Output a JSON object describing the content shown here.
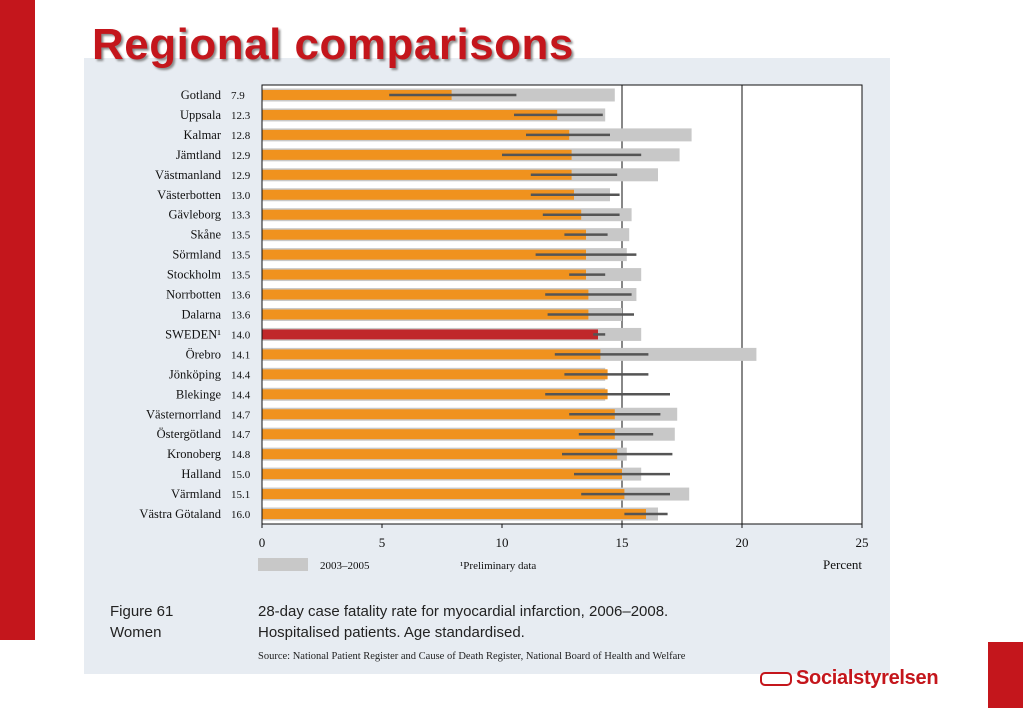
{
  "slide_title": "Regional comparisons",
  "figure": {
    "label_line1": "Figure 61",
    "label_line2": "Women",
    "caption_line1": "28-day case fatality rate for myocardial infarction, 2006–2008.",
    "caption_line2": "Hospitalised patients. Age standardised.",
    "source": "Source: National Patient Register and Cause of Death Register, National Board of Health and Welfare"
  },
  "logo_text": "Socialstyrelsen",
  "colors": {
    "accent": "#c4161c",
    "bar": "#f0921e",
    "highlight_bar": "#c0282a",
    "previous_period": "#c8c8c8",
    "interval": "#555555"
  },
  "chart_data": {
    "type": "bar",
    "orientation": "horizontal",
    "categories": [
      "Gotland",
      "Uppsala",
      "Kalmar",
      "Jämtland",
      "Västmanland",
      "Västerbotten",
      "Gävleborg",
      "Skåne",
      "Sörmland",
      "Stockholm",
      "Norrbotten",
      "Dalarna",
      "SWEDEN¹",
      "Örebro",
      "Jönköping",
      "Blekinge",
      "Västernorrland",
      "Östergötland",
      "Kronoberg",
      "Halland",
      "Värmland",
      "Västra Götaland"
    ],
    "value_labels": [
      "7.9",
      "12.3",
      "12.8",
      "12.9",
      "12.9",
      "13.0",
      "13.3",
      "13.5",
      "13.5",
      "13.5",
      "13.6",
      "13.6",
      "14.0",
      "14.1",
      "14.4",
      "14.4",
      "14.7",
      "14.7",
      "14.8",
      "15.0",
      "15.1",
      "16.0"
    ],
    "highlight_category": "SWEDEN¹",
    "series": [
      {
        "name": "",
        "values": [
          7.9,
          12.3,
          12.8,
          12.9,
          12.9,
          13.0,
          13.3,
          13.5,
          13.5,
          13.5,
          13.6,
          13.6,
          14.0,
          14.1,
          14.4,
          14.4,
          14.7,
          14.7,
          14.8,
          15.0,
          15.1,
          16.0
        ]
      },
      {
        "name": "2003–2005",
        "values": [
          14.7,
          14.3,
          17.9,
          17.4,
          16.5,
          14.5,
          15.4,
          15.3,
          15.2,
          15.8,
          15.6,
          15.0,
          15.8,
          20.6,
          14.3,
          14.3,
          17.3,
          17.2,
          15.2,
          15.8,
          17.8,
          16.5
        ]
      }
    ],
    "ci_low": [
      5.3,
      10.5,
      11.0,
      10.0,
      11.2,
      11.2,
      11.7,
      12.6,
      11.4,
      12.8,
      11.8,
      11.9,
      13.8,
      12.2,
      12.6,
      11.8,
      12.8,
      13.2,
      12.5,
      13.0,
      13.3,
      15.1
    ],
    "ci_high": [
      10.6,
      14.2,
      14.5,
      15.8,
      14.8,
      14.9,
      14.9,
      14.4,
      15.6,
      14.3,
      15.4,
      15.5,
      14.3,
      16.1,
      16.1,
      17.0,
      16.6,
      16.3,
      17.1,
      17.0,
      17.0,
      16.9
    ],
    "xaxis": {
      "ticks": [
        "0",
        "5",
        "10",
        "15",
        "20",
        "25"
      ],
      "range": [
        0,
        25
      ],
      "label": "Percent",
      "gridlines_at": [
        15,
        20
      ]
    },
    "legend": {
      "entries": [
        "2003–2005"
      ],
      "placement": "bottom-left"
    },
    "footnote": "¹Preliminary data"
  }
}
